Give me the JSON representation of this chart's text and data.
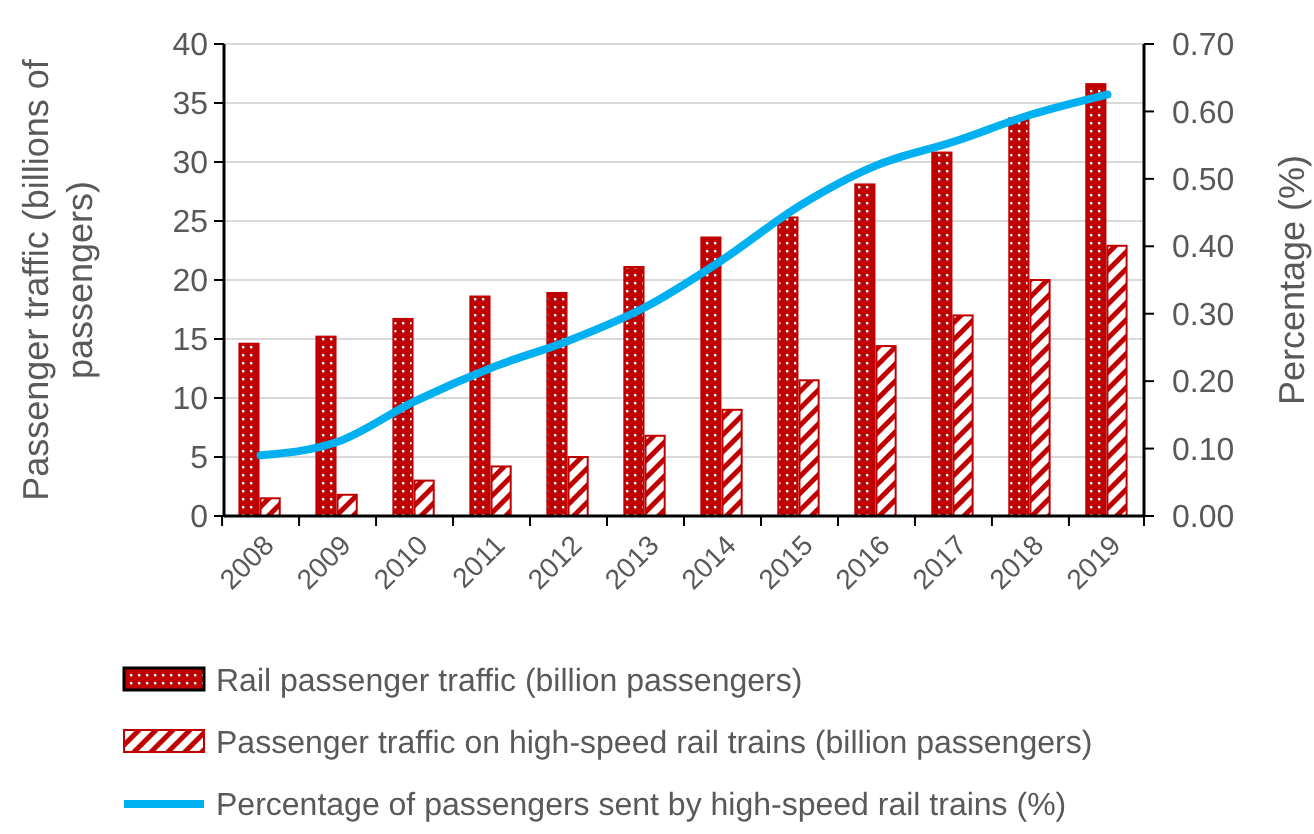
{
  "chart_data": {
    "type": "bar",
    "categories": [
      "2008",
      "2009",
      "2010",
      "2011",
      "2012",
      "2013",
      "2014",
      "2015",
      "2016",
      "2017",
      "2018",
      "2019"
    ],
    "ylabel": "Passenger traffic (billions of passengers)",
    "y2label": "Percentage (%)",
    "ylim": [
      0,
      40
    ],
    "yticks": [
      0,
      5,
      10,
      15,
      20,
      25,
      30,
      35,
      40
    ],
    "y2lim": [
      0,
      0.7
    ],
    "y2ticks": [
      {
        "value": 0,
        "label": "0.00"
      },
      {
        "value": 0.1,
        "label": "0.10"
      },
      {
        "value": 0.2,
        "label": "0.20"
      },
      {
        "value": 0.3,
        "label": "0.30"
      },
      {
        "value": 0.4,
        "label": "0.40"
      },
      {
        "value": 0.5,
        "label": "0.50"
      },
      {
        "value": 0.6,
        "label": "0.60"
      },
      {
        "value": 0.7,
        "label": "0.70"
      }
    ],
    "grid": "y",
    "legend": "bottom",
    "series": [
      {
        "name": "Rail passenger traffic (billion passengers)",
        "color": "#c00000",
        "values": [
          14.6,
          15.2,
          16.7,
          18.6,
          18.9,
          21.1,
          23.6,
          25.3,
          28.1,
          30.8,
          33.7,
          36.6
        ]
      },
      {
        "name": "Passenger traffic on high-speed rail trains (billion passengers)",
        "color": "#c00000",
        "values": [
          1.5,
          1.8,
          3.0,
          4.2,
          5.0,
          6.8,
          9.0,
          11.5,
          14.4,
          17.0,
          20.0,
          22.9
        ]
      },
      {
        "name": "Percentage of passengers sent by high-speed rail trains (%)",
        "type": "line",
        "axis": "y2",
        "color": "#00b0f0",
        "values": [
          0.09,
          0.11,
          0.17,
          0.22,
          0.26,
          0.31,
          0.38,
          0.46,
          0.52,
          0.555,
          0.595,
          0.625
        ]
      }
    ]
  }
}
